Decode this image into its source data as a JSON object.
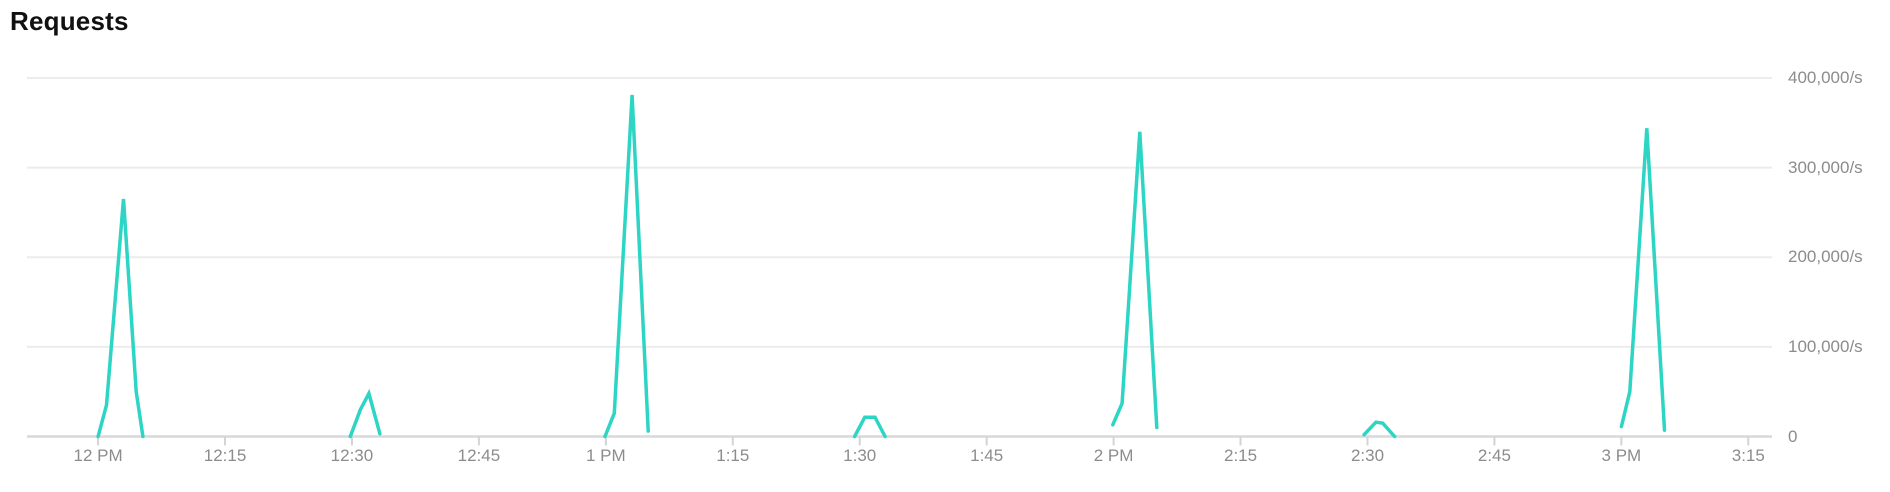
{
  "chart": {
    "title": "Requests"
  },
  "chart_data": {
    "type": "line",
    "title": "Requests",
    "series_name": "requests-per-second",
    "unit": "/s",
    "grid": true,
    "legend": false,
    "colors": {
      "line": "#2cd5c4",
      "gridline": "#ececec",
      "axis_line": "#d8d8d8",
      "tick_mark": "#d4d4d4",
      "tick_label": "#8c8c8c",
      "title": "#111111",
      "background": "#ffffff"
    },
    "x_axis": {
      "range_minutes_from_12pm": [
        -8.4,
        197.8
      ],
      "ticks": [
        {
          "t": 0,
          "label": "12 PM"
        },
        {
          "t": 15,
          "label": "12:15"
        },
        {
          "t": 30,
          "label": "12:30"
        },
        {
          "t": 45,
          "label": "12:45"
        },
        {
          "t": 60,
          "label": "1 PM"
        },
        {
          "t": 75,
          "label": "1:15"
        },
        {
          "t": 90,
          "label": "1:30"
        },
        {
          "t": 105,
          "label": "1:45"
        },
        {
          "t": 120,
          "label": "2 PM"
        },
        {
          "t": 135,
          "label": "2:15"
        },
        {
          "t": 150,
          "label": "2:30"
        },
        {
          "t": 165,
          "label": "2:45"
        },
        {
          "t": 180,
          "label": "3 PM"
        },
        {
          "t": 195,
          "label": "3:15"
        }
      ]
    },
    "y_axis": {
      "range": [
        0,
        400000
      ],
      "ticks": [
        {
          "v": 400000,
          "label": "400,000/s"
        },
        {
          "v": 300000,
          "label": "300,000/s"
        },
        {
          "v": 200000,
          "label": "200,000/s"
        },
        {
          "v": 100000,
          "label": "100,000/s"
        },
        {
          "v": 0,
          "label": "0"
        }
      ]
    },
    "segments": [
      {
        "name": "spike-12:03pm-peak-265k",
        "points": [
          [
            0,
            0
          ],
          [
            1,
            35000
          ],
          [
            3,
            265000
          ],
          [
            4.5,
            50000
          ],
          [
            5.3,
            0
          ]
        ]
      },
      {
        "name": "spike-12:32pm-peak-48k",
        "points": [
          [
            29.8,
            0
          ],
          [
            31,
            30000
          ],
          [
            32,
            48000
          ],
          [
            33.3,
            3000
          ]
        ]
      },
      {
        "name": "spike-1:03pm-peak-381k",
        "points": [
          [
            59.9,
            0
          ],
          [
            61,
            26000
          ],
          [
            63.1,
            381000
          ],
          [
            65,
            6000
          ]
        ]
      },
      {
        "name": "spike-1:31pm-peak-21k",
        "points": [
          [
            89.4,
            0
          ],
          [
            90.6,
            21500
          ],
          [
            91.8,
            21500
          ],
          [
            93,
            0
          ]
        ]
      },
      {
        "name": "spike-2:03pm-peak-340k",
        "points": [
          [
            119.9,
            13000
          ],
          [
            121,
            37000
          ],
          [
            123.1,
            340000
          ],
          [
            125.1,
            10000
          ]
        ]
      },
      {
        "name": "spike-2:31pm-peak-16k",
        "points": [
          [
            149.6,
            2000
          ],
          [
            151,
            16000
          ],
          [
            151.8,
            15000
          ],
          [
            153.2,
            0
          ]
        ]
      },
      {
        "name": "spike-3:03pm-peak-344k",
        "points": [
          [
            180,
            11000
          ],
          [
            181,
            50000
          ],
          [
            183,
            344000
          ],
          [
            185.1,
            7000
          ]
        ]
      }
    ]
  }
}
